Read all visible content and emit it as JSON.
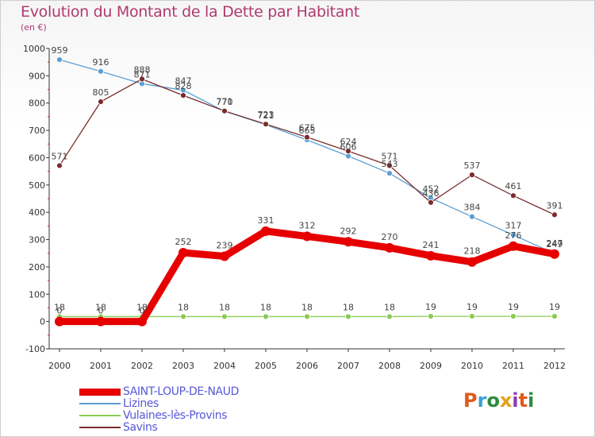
{
  "header": {
    "title": "Evolution du Montant de la Dette par Habitant",
    "subtitle": "(en €)"
  },
  "logo": {
    "text": "Proxiti",
    "colors": [
      "#e05a1a",
      "#3aa0d8",
      "#2c8c3c",
      "#e2a21c",
      "#8a3ab8",
      "#e05a1a",
      "#2c8c3c"
    ]
  },
  "chart_data": {
    "type": "line",
    "x": [
      2000,
      2001,
      2002,
      2003,
      2004,
      2005,
      2006,
      2007,
      2008,
      2009,
      2010,
      2011,
      2012
    ],
    "ylim": [
      -100,
      1000
    ],
    "yticks": [
      -100,
      0,
      100,
      200,
      300,
      400,
      500,
      600,
      700,
      800,
      900,
      1000
    ],
    "grid": false,
    "legend": "bottom-left",
    "series": [
      {
        "name": "SAINT-LOUP-DE-NAUD",
        "color": "#e60000",
        "values": [
          0,
          0,
          0,
          252,
          239,
          331,
          312,
          292,
          270,
          241,
          218,
          276,
          247
        ],
        "labels": [
          "0",
          "0",
          "0",
          "252",
          "239",
          "331",
          "312",
          "292",
          "270",
          "241",
          "218",
          "276",
          "247"
        ]
      },
      {
        "name": "Lizines",
        "color": "#5a9fd4",
        "values": [
          959,
          916,
          871,
          847,
          770,
          721,
          665,
          606,
          543,
          452,
          384,
          317,
          249
        ],
        "labels": [
          "959",
          "916",
          "871",
          "847",
          "770",
          "721",
          "665",
          "606",
          "543",
          "452",
          "384",
          "317",
          "249"
        ]
      },
      {
        "name": "Vulaines-lès-Provins",
        "color": "#88cc55",
        "values": [
          18,
          18,
          18,
          18,
          18,
          18,
          18,
          18,
          18,
          19,
          19,
          19,
          19
        ],
        "labels": [
          "18",
          "18",
          "18",
          "18",
          "18",
          "18",
          "18",
          "18",
          "18",
          "19",
          "19",
          "19",
          "19"
        ]
      },
      {
        "name": "Savins",
        "color": "#7b2c2c",
        "values": [
          571,
          805,
          888,
          828,
          771,
          723,
          675,
          624,
          571,
          436,
          537,
          461,
          391
        ],
        "labels": [
          "571",
          "805",
          "888",
          "828",
          "771",
          "723",
          "675",
          "624",
          "571",
          "436",
          "537",
          "461",
          "391"
        ]
      }
    ]
  }
}
